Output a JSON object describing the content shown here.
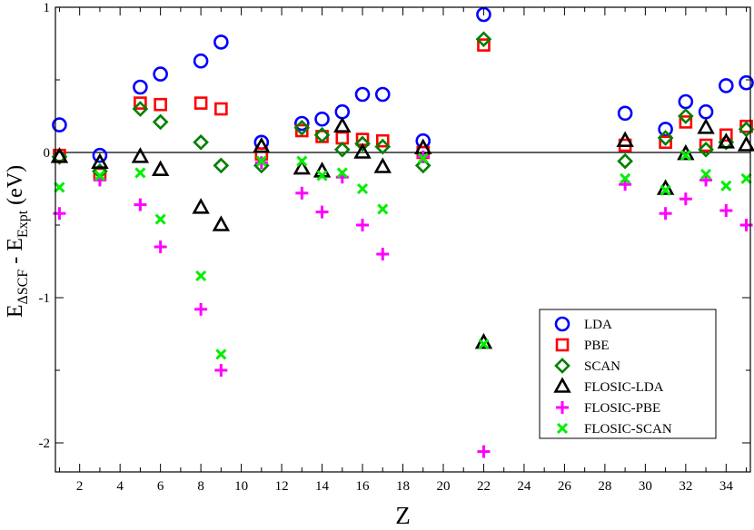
{
  "chart_data": {
    "type": "scatter",
    "title": "",
    "xlabel": "Z",
    "ylabel": {
      "base": "E",
      "sub1": "ΔSCF",
      "mid": " - E",
      "sub2": "Expt",
      "unit": " (eV)"
    },
    "xlim": [
      0.8,
      35.2
    ],
    "ylim": [
      -2.2,
      1.0
    ],
    "x_ticks": [
      2,
      4,
      6,
      8,
      10,
      12,
      14,
      16,
      18,
      20,
      22,
      24,
      26,
      28,
      30,
      32,
      34
    ],
    "y_ticks": [
      -2,
      -1,
      0,
      1
    ],
    "zero_line": true,
    "legend_position": "bottom-right",
    "series": [
      {
        "name": "LDA",
        "marker": "circle",
        "color": "#0000ff",
        "points": [
          [
            1,
            0.19
          ],
          [
            3,
            -0.02
          ],
          [
            5,
            0.45
          ],
          [
            6,
            0.54
          ],
          [
            8,
            0.63
          ],
          [
            9,
            0.76
          ],
          [
            11,
            0.07
          ],
          [
            13,
            0.2
          ],
          [
            14,
            0.23
          ],
          [
            15,
            0.28
          ],
          [
            16,
            0.4
          ],
          [
            17,
            0.4
          ],
          [
            19,
            0.08
          ],
          [
            22,
            0.95
          ],
          [
            29,
            0.27
          ],
          [
            31,
            0.16
          ],
          [
            32,
            0.35
          ],
          [
            33,
            0.28
          ],
          [
            34,
            0.46
          ],
          [
            35,
            0.48
          ]
        ]
      },
      {
        "name": "PBE",
        "marker": "square",
        "color": "#ff0000",
        "points": [
          [
            1,
            -0.02
          ],
          [
            3,
            -0.15
          ],
          [
            5,
            0.34
          ],
          [
            6,
            0.33
          ],
          [
            8,
            0.34
          ],
          [
            9,
            0.3
          ],
          [
            11,
            -0.01
          ],
          [
            13,
            0.15
          ],
          [
            14,
            0.11
          ],
          [
            15,
            0.1
          ],
          [
            16,
            0.09
          ],
          [
            17,
            0.08
          ],
          [
            19,
            0.0
          ],
          [
            22,
            0.74
          ],
          [
            29,
            0.05
          ],
          [
            31,
            0.07
          ],
          [
            32,
            0.21
          ],
          [
            33,
            0.05
          ],
          [
            34,
            0.12
          ],
          [
            35,
            0.18
          ]
        ]
      },
      {
        "name": "SCAN",
        "marker": "diamond",
        "color": "#008000",
        "points": [
          [
            1,
            -0.03
          ],
          [
            3,
            -0.13
          ],
          [
            5,
            0.3
          ],
          [
            6,
            0.21
          ],
          [
            8,
            0.07
          ],
          [
            9,
            -0.09
          ],
          [
            11,
            -0.09
          ],
          [
            13,
            0.17
          ],
          [
            14,
            0.12
          ],
          [
            15,
            0.02
          ],
          [
            16,
            0.06
          ],
          [
            17,
            0.04
          ],
          [
            19,
            -0.09
          ],
          [
            22,
            0.78
          ],
          [
            29,
            -0.06
          ],
          [
            31,
            0.1
          ],
          [
            32,
            0.25
          ],
          [
            33,
            0.02
          ],
          [
            34,
            0.07
          ],
          [
            35,
            0.16
          ]
        ]
      },
      {
        "name": "FLOSIC-LDA",
        "marker": "triangle",
        "color": "#000000",
        "points": [
          [
            1,
            -0.03
          ],
          [
            3,
            -0.07
          ],
          [
            5,
            -0.03
          ],
          [
            6,
            -0.12
          ],
          [
            8,
            -0.38
          ],
          [
            9,
            -0.5
          ],
          [
            11,
            0.04
          ],
          [
            13,
            -0.11
          ],
          [
            14,
            -0.13
          ],
          [
            15,
            0.18
          ],
          [
            16,
            0.0
          ],
          [
            17,
            -0.1
          ],
          [
            19,
            0.03
          ],
          [
            22,
            -1.31
          ],
          [
            29,
            0.08
          ],
          [
            31,
            -0.25
          ],
          [
            32,
            -0.01
          ],
          [
            33,
            0.17
          ],
          [
            34,
            0.07
          ],
          [
            35,
            0.05
          ]
        ]
      },
      {
        "name": "FLOSIC-PBE",
        "marker": "plus",
        "color": "#ff00ff",
        "points": [
          [
            1,
            -0.42
          ],
          [
            3,
            -0.19
          ],
          [
            5,
            -0.36
          ],
          [
            6,
            -0.65
          ],
          [
            8,
            -1.08
          ],
          [
            9,
            -1.5
          ],
          [
            11,
            -0.07
          ],
          [
            13,
            -0.28
          ],
          [
            14,
            -0.41
          ],
          [
            15,
            -0.17
          ],
          [
            16,
            -0.5
          ],
          [
            17,
            -0.7
          ],
          [
            19,
            -0.03
          ],
          [
            22,
            -2.06
          ],
          [
            29,
            -0.22
          ],
          [
            31,
            -0.42
          ],
          [
            32,
            -0.32
          ],
          [
            33,
            -0.19
          ],
          [
            34,
            -0.4
          ],
          [
            35,
            -0.5
          ]
        ]
      },
      {
        "name": "FLOSIC-SCAN",
        "marker": "x",
        "color": "#00ee00",
        "points": [
          [
            1,
            -0.24
          ],
          [
            3,
            -0.16
          ],
          [
            5,
            -0.14
          ],
          [
            6,
            -0.46
          ],
          [
            8,
            -0.85
          ],
          [
            9,
            -1.39
          ],
          [
            11,
            -0.06
          ],
          [
            13,
            -0.06
          ],
          [
            14,
            -0.16
          ],
          [
            15,
            -0.14
          ],
          [
            16,
            -0.25
          ],
          [
            17,
            -0.39
          ],
          [
            19,
            -0.04
          ],
          [
            22,
            -1.32
          ],
          [
            29,
            -0.18
          ],
          [
            31,
            -0.26
          ],
          [
            32,
            -0.02
          ],
          [
            33,
            -0.15
          ],
          [
            34,
            -0.23
          ],
          [
            35,
            -0.18
          ]
        ]
      }
    ]
  }
}
